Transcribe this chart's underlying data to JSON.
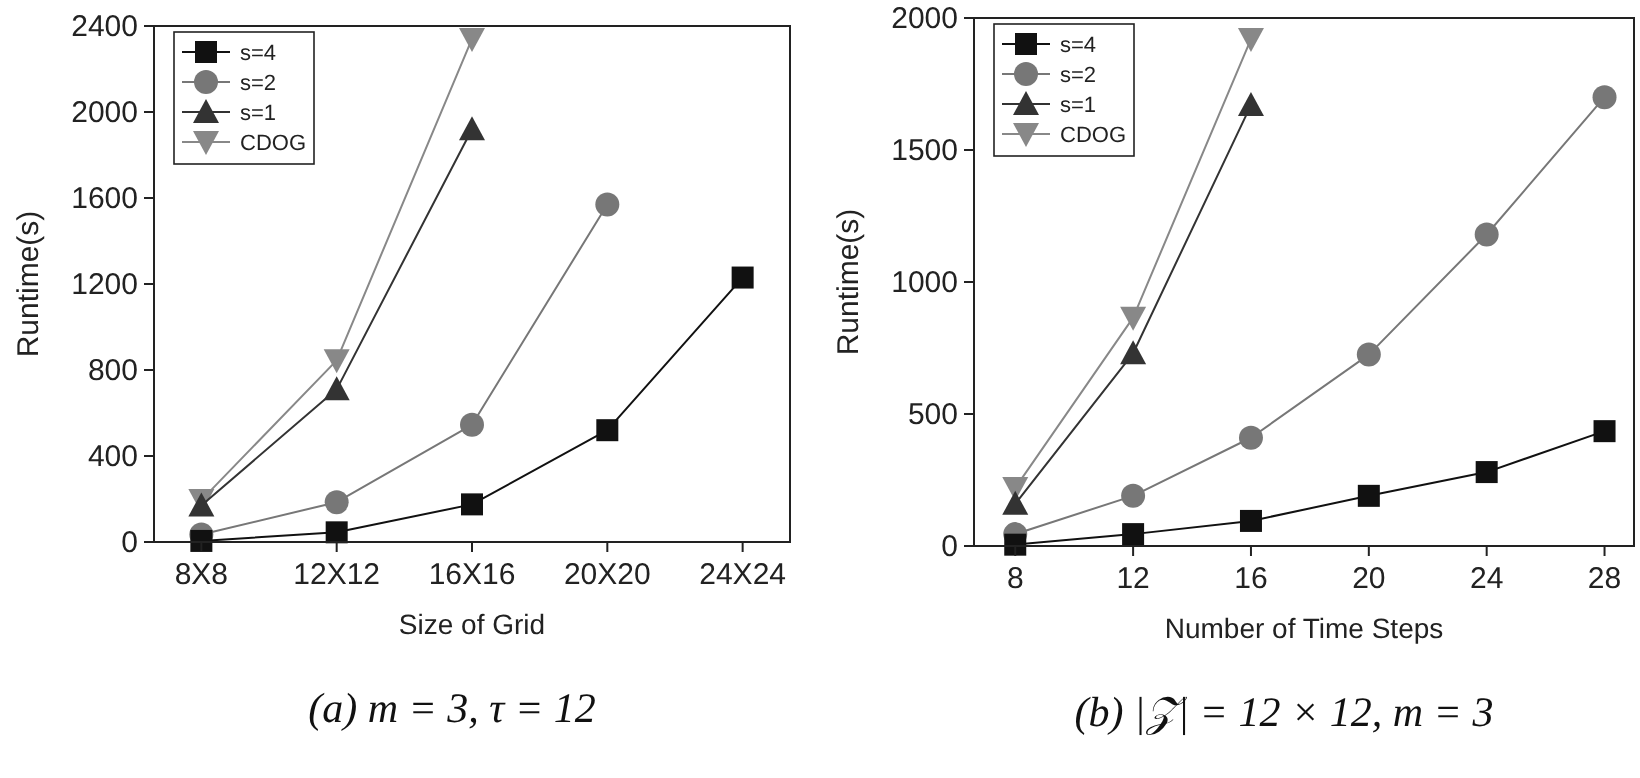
{
  "chart_data": [
    {
      "type": "line",
      "categories": [
        "8X8",
        "12X12",
        "16X16",
        "20X20",
        "24X24"
      ],
      "xlabel": "Size of Grid",
      "ylabel": "Runtime(s)",
      "ylim": [
        0,
        2400
      ],
      "yticks": [
        0,
        400,
        800,
        1200,
        1600,
        2000,
        2400
      ],
      "legend": "top left",
      "grid": false,
      "annotations": [
        "(a) m = 3, τ = 12"
      ],
      "series": [
        {
          "name": "s=4",
          "color": "#111111",
          "marker": "square",
          "values": [
            5,
            45,
            175,
            520,
            1230
          ]
        },
        {
          "name": "s=2",
          "color": "#777777",
          "marker": "circle",
          "values": [
            35,
            185,
            545,
            1570,
            null
          ]
        },
        {
          "name": "s=1",
          "color": "#333333",
          "marker": "triangle",
          "values": [
            170,
            710,
            1920,
            null,
            null
          ]
        },
        {
          "name": "CDOG",
          "color": "#888888",
          "marker": "triangle-down",
          "values": [
            195,
            845,
            2340,
            null,
            null
          ]
        }
      ]
    },
    {
      "type": "line",
      "x": [
        8,
        12,
        16,
        20,
        24,
        28
      ],
      "xlabel": "Number of Time Steps",
      "ylabel": "Runtime(s)",
      "xlim": [
        6.6,
        29
      ],
      "xticks": [
        8,
        12,
        16,
        20,
        24,
        28
      ],
      "ylim": [
        0,
        2000
      ],
      "yticks": [
        0,
        500,
        1000,
        1500,
        2000
      ],
      "legend": "top left",
      "grid": false,
      "annotations": [
        "(b) |𝒵| = 12 × 12, m = 3"
      ],
      "series": [
        {
          "name": "s=4",
          "color": "#111111",
          "marker": "square",
          "values": [
            5,
            45,
            95,
            190,
            280,
            435
          ]
        },
        {
          "name": "s=2",
          "color": "#777777",
          "marker": "circle",
          "values": [
            45,
            190,
            410,
            725,
            1180,
            1700
          ]
        },
        {
          "name": "s=1",
          "color": "#333333",
          "marker": "triangle",
          "values": [
            160,
            730,
            1670,
            null,
            null,
            null
          ]
        },
        {
          "name": "CDOG",
          "color": "#888888",
          "marker": "triangle-down",
          "values": [
            220,
            865,
            1920,
            null,
            null,
            null
          ]
        }
      ]
    }
  ]
}
